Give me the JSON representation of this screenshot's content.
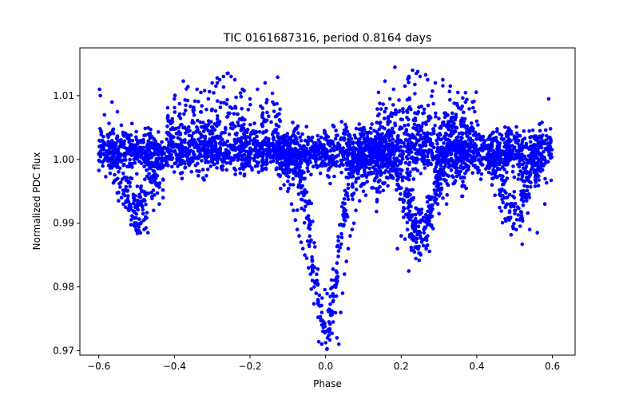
{
  "chart_data": {
    "type": "scatter",
    "title": "TIC 0161687316, period 0.8164 days",
    "xlabel": "Phase",
    "ylabel": "Normalized PDC flux",
    "xlim": [
      -0.65,
      0.66
    ],
    "ylim": [
      0.9693,
      1.0175
    ],
    "x_ticks": [
      -0.6,
      -0.4,
      -0.2,
      0.0,
      0.2,
      0.4,
      0.6
    ],
    "x_tick_labels": [
      "−0.6",
      "−0.4",
      "−0.2",
      "0.0",
      "0.2",
      "0.4",
      "0.6"
    ],
    "y_ticks": [
      0.97,
      0.98,
      0.99,
      1.0,
      1.01
    ],
    "y_tick_labels": [
      "0.97",
      "0.98",
      "0.99",
      "1.00",
      "1.01"
    ],
    "grid": false,
    "marker_color": "#0000ff",
    "series": [
      {
        "name": "PDC flux",
        "points": [
          [
            -0.598,
            1.011
          ],
          [
            -0.596,
            1.01
          ],
          [
            -0.585,
            1.007
          ],
          [
            -0.565,
            1.009
          ],
          [
            -0.56,
            0.999
          ],
          [
            -0.55,
            0.997
          ],
          [
            -0.54,
            0.994
          ],
          [
            -0.535,
            0.993
          ],
          [
            -0.52,
            0.992
          ],
          [
            -0.51,
            0.991
          ],
          [
            -0.5,
            0.99
          ],
          [
            -0.48,
            0.989
          ],
          [
            -0.47,
            0.9885
          ],
          [
            -0.455,
            0.992
          ],
          [
            -0.44,
            0.993
          ],
          [
            -0.43,
            0.994
          ],
          [
            -0.4,
            1.0095
          ],
          [
            -0.37,
            1.0085
          ],
          [
            -0.35,
            1.0075
          ],
          [
            -0.34,
            1.011
          ],
          [
            -0.33,
            1.0105
          ],
          [
            -0.31,
            1.0095
          ],
          [
            -0.3,
            1.012
          ],
          [
            -0.29,
            1.0115
          ],
          [
            -0.28,
            1.0125
          ],
          [
            -0.27,
            1.013
          ],
          [
            -0.26,
            1.0135
          ],
          [
            -0.25,
            1.013
          ],
          [
            -0.24,
            1.0125
          ],
          [
            -0.22,
            1.011
          ],
          [
            -0.2,
            1.0095
          ],
          [
            -0.18,
            1.011
          ],
          [
            -0.16,
            1.012
          ],
          [
            -0.14,
            1.009
          ],
          [
            -0.12,
            1.006
          ],
          [
            -0.1,
            1.003
          ],
          [
            -0.12,
            0.9975
          ],
          [
            -0.11,
            0.996
          ],
          [
            -0.1,
            0.995
          ],
          [
            -0.09,
            0.993
          ],
          [
            -0.085,
            0.992
          ],
          [
            -0.08,
            0.9905
          ],
          [
            -0.075,
            0.989
          ],
          [
            -0.07,
            0.988
          ],
          [
            -0.065,
            0.987
          ],
          [
            -0.06,
            0.986
          ],
          [
            -0.055,
            0.985
          ],
          [
            -0.05,
            0.9845
          ],
          [
            -0.045,
            0.983
          ],
          [
            -0.04,
            0.982
          ],
          [
            -0.035,
            0.981
          ],
          [
            -0.03,
            0.98
          ],
          [
            -0.025,
            0.979
          ],
          [
            -0.02,
            0.978
          ],
          [
            -0.015,
            0.977
          ],
          [
            -0.01,
            0.976
          ],
          [
            -0.005,
            0.9745
          ],
          [
            0.0,
            0.973
          ],
          [
            0.005,
            0.972
          ],
          [
            0.01,
            0.973
          ],
          [
            0.02,
            0.9745
          ],
          [
            0.03,
            0.972
          ],
          [
            0.035,
            0.971
          ],
          [
            0.04,
            0.976
          ],
          [
            0.045,
            0.979
          ],
          [
            0.05,
            0.982
          ],
          [
            0.055,
            0.984
          ],
          [
            0.06,
            0.986
          ],
          [
            0.065,
            0.988
          ],
          [
            0.07,
            0.989
          ],
          [
            0.075,
            0.99
          ],
          [
            0.08,
            0.992
          ],
          [
            0.09,
            0.9935
          ],
          [
            0.1,
            0.995
          ],
          [
            0.11,
            0.9965
          ],
          [
            0.12,
            0.998
          ],
          [
            0.15,
            1.004
          ],
          [
            0.16,
            1.008
          ],
          [
            0.17,
            1.0095
          ],
          [
            0.18,
            1.011
          ],
          [
            0.19,
            0.986
          ],
          [
            0.2,
            0.988
          ],
          [
            0.21,
            0.9875
          ],
          [
            0.22,
            0.9825
          ],
          [
            0.23,
            0.988
          ],
          [
            0.24,
            0.987
          ],
          [
            0.25,
            0.9885
          ],
          [
            0.26,
            0.989
          ],
          [
            0.27,
            0.988
          ],
          [
            0.28,
            0.9895
          ],
          [
            0.3,
            0.9915
          ],
          [
            0.32,
            0.993
          ],
          [
            0.21,
            1.0115
          ],
          [
            0.22,
            1.013
          ],
          [
            0.23,
            1.014
          ],
          [
            0.24,
            1.0135
          ],
          [
            0.25,
            1.013
          ],
          [
            0.27,
            1.0125
          ],
          [
            0.29,
            1.012
          ],
          [
            0.31,
            1.0125
          ],
          [
            0.33,
            1.0115
          ],
          [
            0.35,
            1.0105
          ],
          [
            0.37,
            1.009
          ],
          [
            0.4,
            1.006
          ],
          [
            0.44,
            0.996
          ],
          [
            0.46,
            0.9945
          ],
          [
            0.48,
            0.993
          ],
          [
            0.5,
            0.992
          ],
          [
            0.52,
            0.9905
          ],
          [
            0.54,
            0.989
          ],
          [
            0.56,
            0.9885
          ],
          [
            0.58,
            0.993
          ],
          [
            0.59,
            1.0095
          ]
        ]
      }
    ]
  }
}
